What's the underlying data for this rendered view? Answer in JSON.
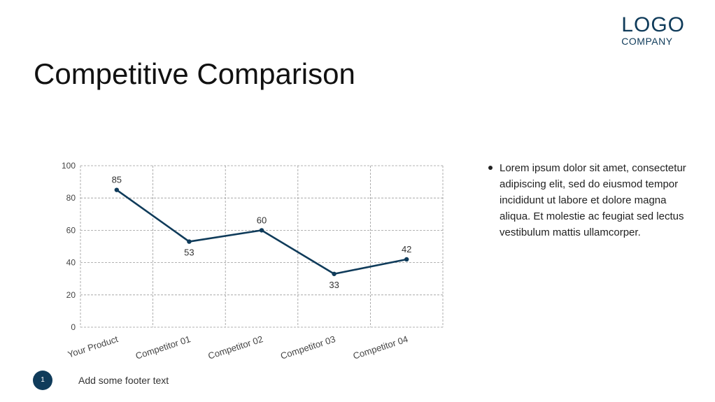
{
  "logo": {
    "main": "LOGO",
    "sub": "COMPANY"
  },
  "title": "Competitive Comparison",
  "bullets": [
    "Lorem ipsum dolor sit amet, consectetur adipiscing elit, sed do eiusmod tempor incididunt ut labore et dolore magna aliqua. Et molestie ac feugiat sed lectus vestibulum mattis ullamcorper."
  ],
  "footer": {
    "page_number": "1",
    "text": "Add some footer text"
  },
  "colors": {
    "series": "#0f3b5a",
    "grid": "#9a9a9a",
    "accent": "#0f3b5a"
  },
  "chart_data": {
    "type": "line",
    "categories": [
      "Your Product",
      "Competitor 01",
      "Competitor 02",
      "Competitor 03",
      "Competitor 04"
    ],
    "series": [
      {
        "values": [
          85,
          53,
          60,
          33,
          42
        ]
      }
    ],
    "ylim": [
      0,
      100
    ],
    "yticks": [
      0,
      20,
      40,
      60,
      80,
      100
    ],
    "grid": true,
    "data_labels": true,
    "legend": "none"
  }
}
